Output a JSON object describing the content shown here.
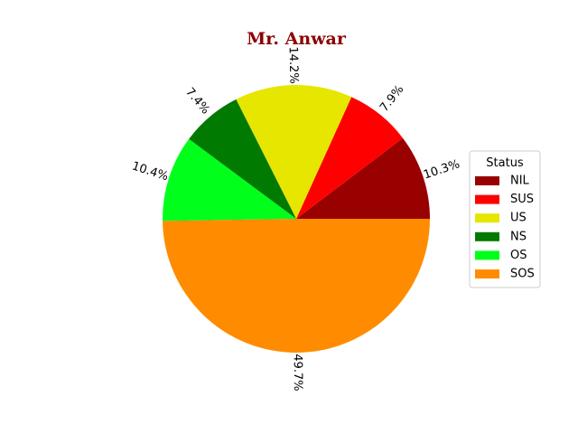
{
  "chart_data": {
    "type": "pie",
    "title": "Mr. Anwar",
    "legend_title": "Status",
    "legend_placement": "right",
    "slices": [
      {
        "label": "NIL",
        "value": 10.3,
        "pct_label": "10.3%",
        "color": "#990000"
      },
      {
        "label": "SUS",
        "value": 7.9,
        "pct_label": "7.9%",
        "color": "#ff0000"
      },
      {
        "label": "US",
        "value": 14.2,
        "pct_label": "14.2%",
        "color": "#e6e600"
      },
      {
        "label": "NS",
        "value": 7.4,
        "pct_label": "7.4%",
        "color": "#007a00"
      },
      {
        "label": "OS",
        "value": 10.4,
        "pct_label": "10.4%",
        "color": "#00ff1a"
      },
      {
        "label": "SOS",
        "value": 49.7,
        "pct_label": "49.7%",
        "color": "#ff8c00"
      }
    ]
  }
}
